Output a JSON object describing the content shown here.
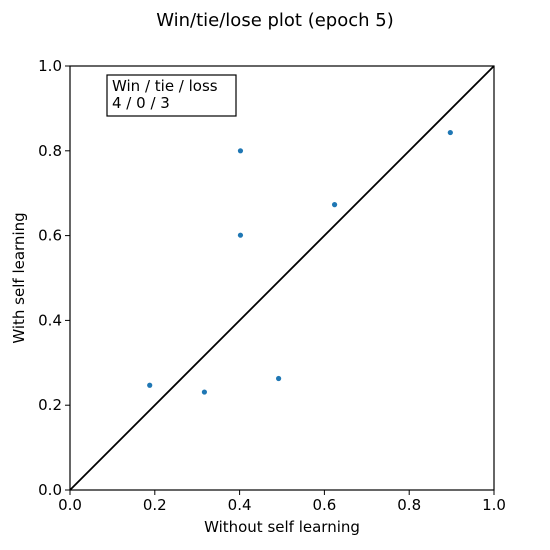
{
  "chart_data": {
    "type": "scatter",
    "title": "Win/tie/lose plot (epoch 5)",
    "xlabel": "Without self learning",
    "ylabel": "With self learning",
    "xlim": [
      0.0,
      1.0
    ],
    "ylim": [
      0.0,
      1.0
    ],
    "xticks": [
      "0.0",
      "0.2",
      "0.4",
      "0.6",
      "0.8",
      "1.0"
    ],
    "yticks": [
      "0.0",
      "0.2",
      "0.4",
      "0.6",
      "0.8",
      "1.0"
    ],
    "grid": false,
    "points": [
      {
        "x": 0.188,
        "y": 0.247
      },
      {
        "x": 0.317,
        "y": 0.231
      },
      {
        "x": 0.402,
        "y": 0.8
      },
      {
        "x": 0.402,
        "y": 0.601
      },
      {
        "x": 0.492,
        "y": 0.263
      },
      {
        "x": 0.624,
        "y": 0.673
      },
      {
        "x": 0.897,
        "y": 0.843
      }
    ],
    "reference_line": {
      "from": [
        0.0,
        0.0
      ],
      "to": [
        1.0,
        1.0
      ]
    },
    "annotation": {
      "line1": "Win / tie / loss",
      "line2": "4 / 0 / 3"
    },
    "colors": {
      "points": "#1f77b4",
      "reference_line": "#000000"
    }
  }
}
